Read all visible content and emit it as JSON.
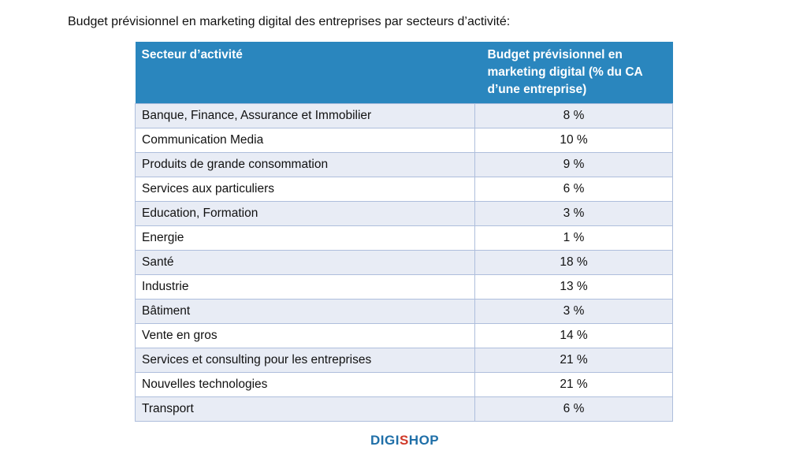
{
  "title": "Budget prévisionnel en marketing digital des entreprises par secteurs d’activité:",
  "table": {
    "headers": [
      "Secteur d’activité",
      "Budget prévisionnel en marketing digital (% du CA d’une entreprise)"
    ],
    "rows": [
      [
        "Banque, Finance, Assurance et Immobilier",
        "8 %"
      ],
      [
        "Communication Media",
        "10 %"
      ],
      [
        "Produits de grande consommation",
        "9 %"
      ],
      [
        "Services aux particuliers",
        "6 %"
      ],
      [
        "Education, Formation",
        "3 %"
      ],
      [
        "Energie",
        "1 %"
      ],
      [
        "Santé",
        "18 %"
      ],
      [
        "Industrie",
        "13 %"
      ],
      [
        "Bâtiment",
        "3 %"
      ],
      [
        "Vente en gros",
        "14 %"
      ],
      [
        "Services et consulting pour les entreprises",
        "21 %"
      ],
      [
        "Nouvelles technologies",
        "21 %"
      ],
      [
        "Transport",
        "6 %"
      ]
    ]
  },
  "logo": {
    "part1": "DIGI",
    "part2": "S",
    "part3": "H",
    "part4": "OP"
  }
}
